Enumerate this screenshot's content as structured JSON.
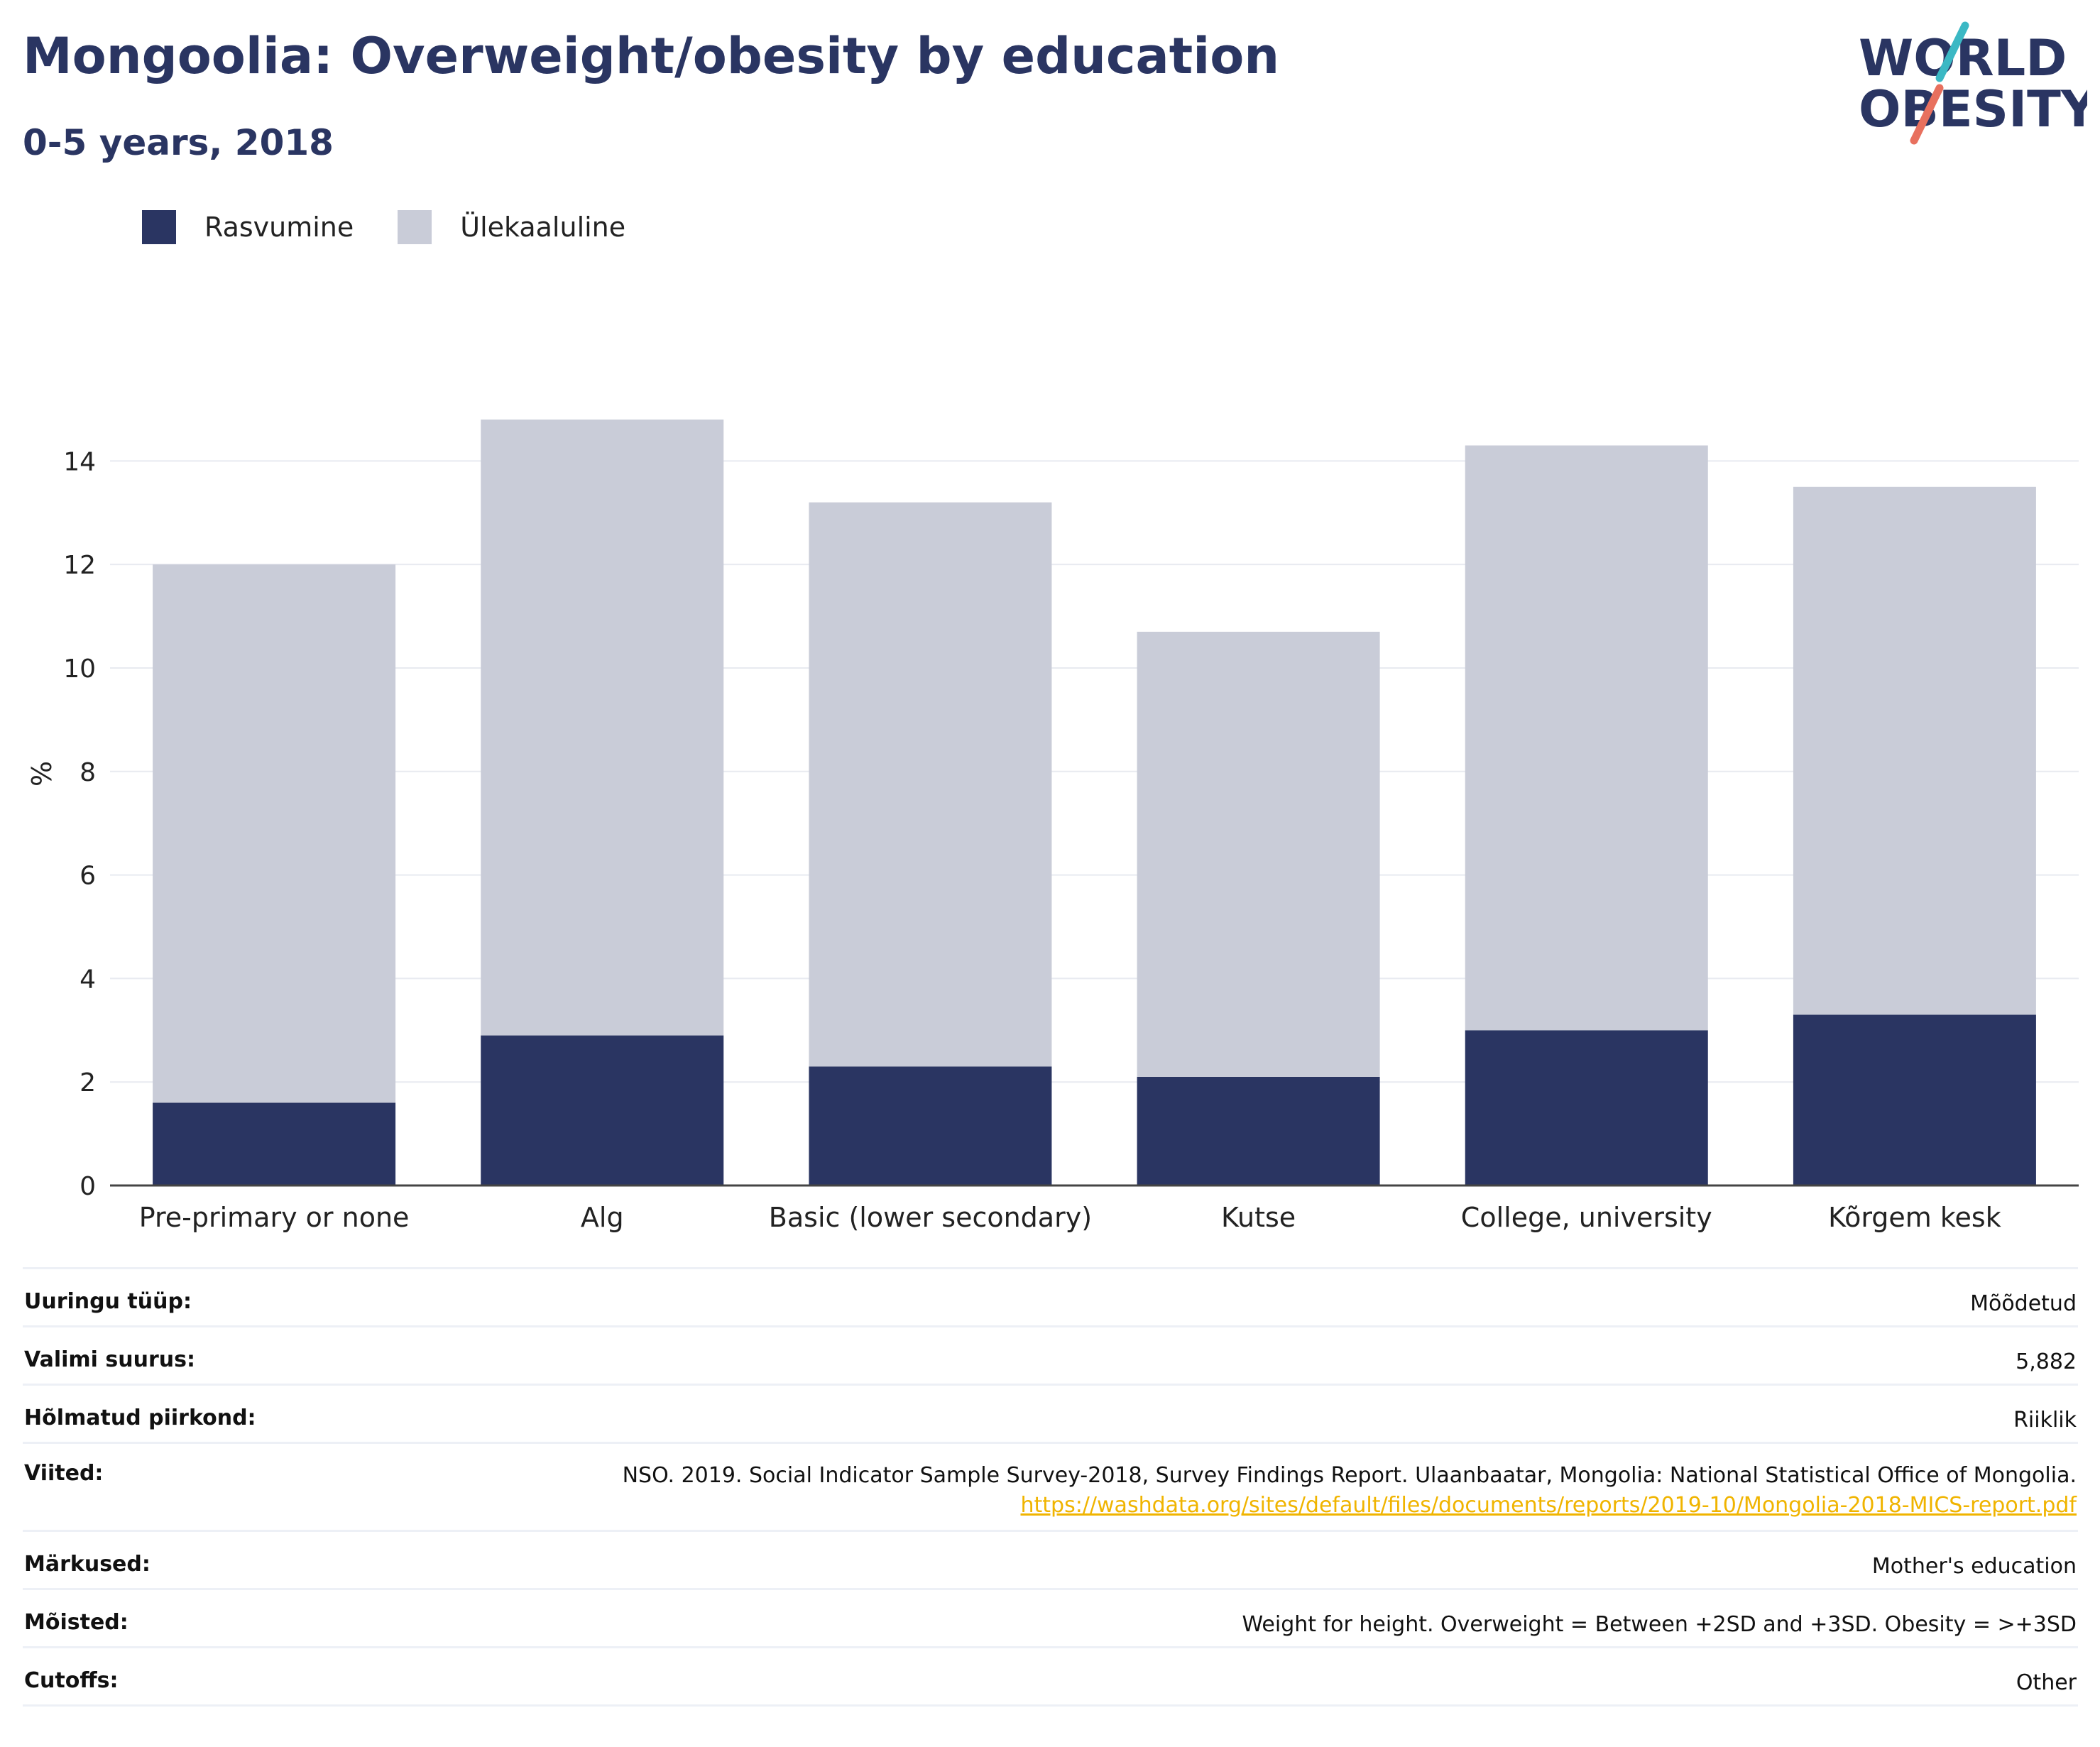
{
  "header": {
    "title": "Mongoolia: Overweight/obesity by education",
    "subtitle": "0-5 years, 2018"
  },
  "logo": {
    "line1": "WORLD",
    "line2": "OBESITY",
    "colors": {
      "text": "#2a3562",
      "slash_top": "#3bb8c4",
      "slash_bottom": "#e8705e"
    }
  },
  "chart_data": {
    "type": "bar",
    "stacked": true,
    "categories": [
      "Pre-primary or none",
      "Alg",
      "Basic (lower secondary)",
      "Kutse",
      "College, university",
      "Kõrgem kesk"
    ],
    "series": [
      {
        "name": "Rasvumine",
        "color": "#2a3562",
        "values": [
          1.6,
          2.9,
          2.3,
          2.1,
          3.0,
          3.3
        ]
      },
      {
        "name": "Ülekaaluline",
        "color": "#c9ccd8",
        "values": [
          10.4,
          11.9,
          10.9,
          8.6,
          11.3,
          10.2
        ]
      }
    ],
    "ylabel": "%",
    "xlabel": "",
    "ylim": [
      0,
      15.5
    ],
    "yticks": [
      0,
      2,
      4,
      6,
      8,
      10,
      12,
      14
    ],
    "grid": true,
    "legend_position": "top-left"
  },
  "meta": [
    {
      "label": "Uuringu tüüp:",
      "value": "Mõõdetud"
    },
    {
      "label": "Valimi suurus:",
      "value": "5,882"
    },
    {
      "label": "Hõlmatud piirkond:",
      "value": "Riiklik"
    },
    {
      "label": "Viited:",
      "value": "NSO. 2019. Social Indicator Sample Survey-2018, Survey Findings Report. Ulaanbaatar, Mongolia: National Statistical Office of Mongolia.",
      "link": "https://washdata.org/sites/default/files/documents/reports/2019-10/Mongolia-2018-MICS-report.pdf"
    },
    {
      "label": "Märkused:",
      "value": "Mother's education"
    },
    {
      "label": "Mõisted:",
      "value": "Weight for height. Overweight = Between +2SD and +3SD. Obesity = >+3SD"
    },
    {
      "label": "Cutoffs:",
      "value": "Other"
    }
  ]
}
